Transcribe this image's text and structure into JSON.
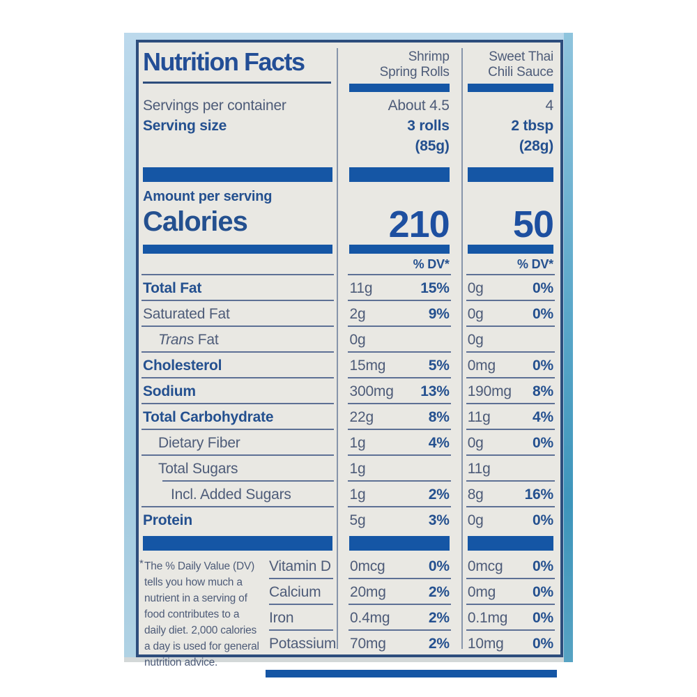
{
  "header": {
    "title": "Nutrition Facts",
    "col1_line1": "Shrimp",
    "col1_line2": "Spring Rolls",
    "col2_line1": "Sweet Thai",
    "col2_line2": "Chili Sauce"
  },
  "serving": {
    "servings_label": "Servings per container",
    "serving_size_label": "Serving size",
    "col1_servings": "About 4.5",
    "col2_servings": "4",
    "col1_size": "3 rolls",
    "col2_size": "2 tbsp",
    "col1_weight": "(85g)",
    "col2_weight": "(28g)"
  },
  "calories": {
    "amount_label": "Amount per serving",
    "label": "Calories",
    "col1_value": "210",
    "col2_value": "50",
    "dv_header": "% DV*"
  },
  "nutrients": [
    {
      "label": "Total Fat",
      "c1a": "11g",
      "c1p": "15%",
      "c2a": "0g",
      "c2p": "0%"
    },
    {
      "label": "Saturated Fat",
      "c1a": "2g",
      "c1p": "9%",
      "c2a": "0g",
      "c2p": "0%"
    },
    {
      "label_i": "Trans",
      "label_r": " Fat",
      "c1a": "0g",
      "c1p": "",
      "c2a": "0g",
      "c2p": ""
    },
    {
      "label": "Cholesterol",
      "c1a": "15mg",
      "c1p": "5%",
      "c2a": "0mg",
      "c2p": "0%"
    },
    {
      "label": "Sodium",
      "c1a": "300mg",
      "c1p": "13%",
      "c2a": "190mg",
      "c2p": "8%"
    },
    {
      "label": "Total Carbohydrate",
      "c1a": "22g",
      "c1p": "8%",
      "c2a": "11g",
      "c2p": "4%"
    },
    {
      "label": "Dietary Fiber",
      "c1a": "1g",
      "c1p": "4%",
      "c2a": "0g",
      "c2p": "0%"
    },
    {
      "label": "Total Sugars",
      "c1a": "1g",
      "c1p": "",
      "c2a": "11g",
      "c2p": ""
    },
    {
      "label": "Incl. Added Sugars",
      "c1a": "1g",
      "c1p": "2%",
      "c2a": "8g",
      "c2p": "16%"
    },
    {
      "label": "Protein",
      "c1a": "5g",
      "c1p": "3%",
      "c2a": "0g",
      "c2p": "0%"
    }
  ],
  "vitamins": [
    {
      "name": "Vitamin D",
      "c1a": "0mcg",
      "c1p": "0%",
      "c2a": "0mcg",
      "c2p": "0%"
    },
    {
      "name": "Calcium",
      "c1a": "20mg",
      "c1p": "2%",
      "c2a": "0mg",
      "c2p": "0%"
    },
    {
      "name": "Iron",
      "c1a": "0.4mg",
      "c1p": "2%",
      "c2a": "0.1mg",
      "c2p": "0%"
    },
    {
      "name": "Potassium",
      "c1a": "70mg",
      "c1p": "2%",
      "c2a": "10mg",
      "c2p": "0%"
    }
  ],
  "footnote": {
    "asterisk": "*",
    "text": "The % Daily Value (DV) tells you how much a nutrient in a serving of food contributes to a daily diet. 2,000 calories a day is used for general nutrition advice."
  },
  "colors": {
    "bar_blue": "#1556a5",
    "text_navy": "#24508f",
    "text_slate": "#4d5b78",
    "label_background": "#e9e8e3",
    "label_border": "#2d4d7c",
    "package_blue": "#abd0e4",
    "package_edge_teal": "#3e95bb"
  }
}
